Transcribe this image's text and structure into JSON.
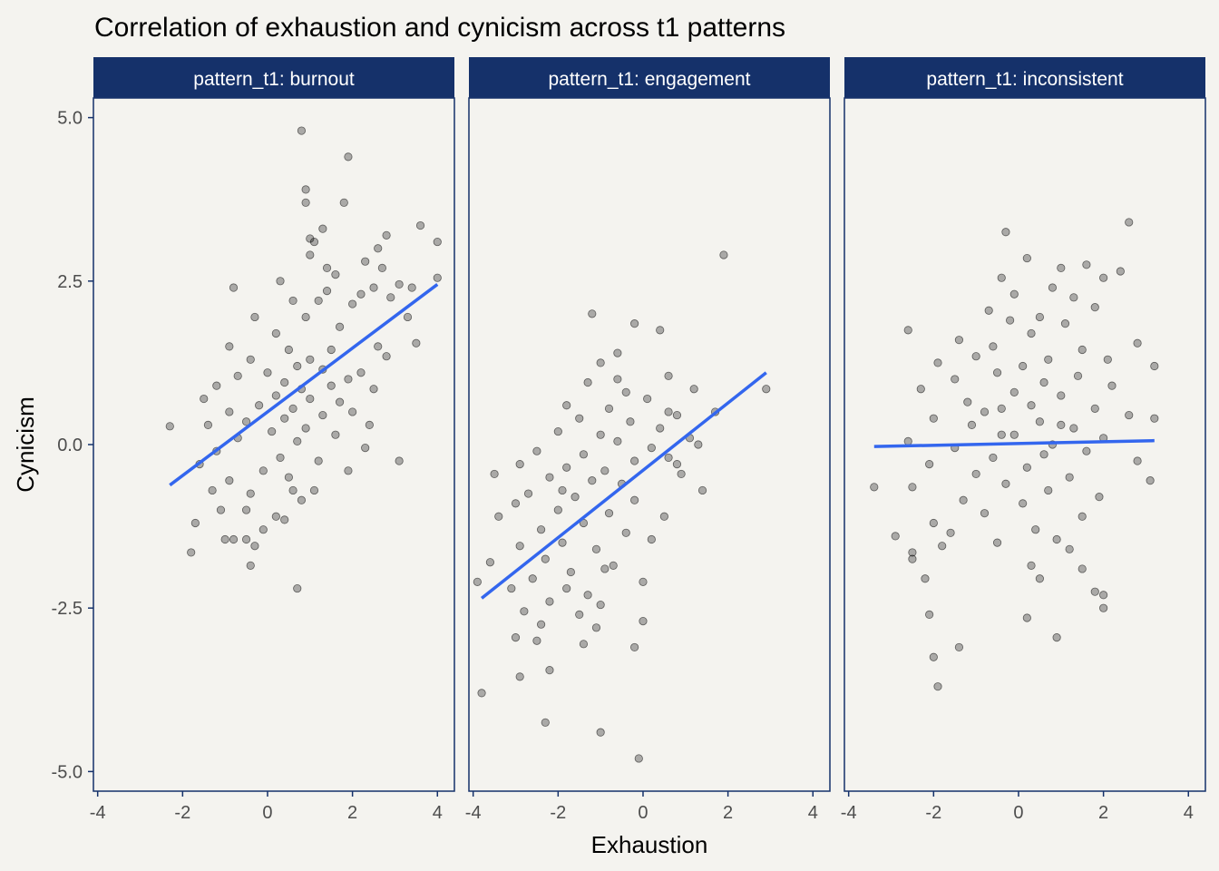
{
  "chart_data": {
    "type": "scatter",
    "title": "Correlation of exhaustion and cynicism across t1 patterns",
    "xlabel": "Exhaustion",
    "ylabel": "Cynicism",
    "xlim": [
      -4.1,
      4.4
    ],
    "ylim": [
      -5.3,
      5.3
    ],
    "x_ticks": [
      -4,
      -2,
      0,
      2,
      4
    ],
    "x_tick_labels": [
      "-4",
      "-2",
      "0",
      "2",
      "4"
    ],
    "y_ticks": [
      5,
      2.5,
      0,
      -2.5,
      -5
    ],
    "y_tick_labels": [
      "5.0",
      "2.5",
      "0.0",
      "-2.5",
      "-5.0"
    ],
    "grid": false,
    "colors": {
      "background": "#f4f3ef",
      "strip": "#15316a",
      "strip_text": "#ffffff",
      "panel_border": "#15316a",
      "points": "#000000",
      "trend": "#3366ee",
      "text": "#4d4d4d",
      "title": "#000000"
    },
    "panels": [
      {
        "strip": "pattern_t1: burnout",
        "trend": {
          "x": [
            -2.3,
            4.0
          ],
          "y": [
            -0.62,
            2.45
          ]
        },
        "points": [
          [
            0.8,
            4.8
          ],
          [
            1.9,
            4.4
          ],
          [
            0.9,
            3.9
          ],
          [
            0.9,
            3.7
          ],
          [
            1.8,
            3.7
          ],
          [
            3.6,
            3.35
          ],
          [
            1.3,
            3.3
          ],
          [
            4.0,
            3.1
          ],
          [
            2.8,
            3.2
          ],
          [
            2.6,
            3.0
          ],
          [
            1.0,
            3.15
          ],
          [
            1.1,
            3.1
          ],
          [
            2.3,
            2.8
          ],
          [
            1.0,
            2.9
          ],
          [
            2.7,
            2.7
          ],
          [
            3.4,
            2.4
          ],
          [
            4.0,
            2.55
          ],
          [
            3.1,
            2.45
          ],
          [
            -0.8,
            2.4
          ],
          [
            0.3,
            2.5
          ],
          [
            2.5,
            2.4
          ],
          [
            2.2,
            2.3
          ],
          [
            1.4,
            2.7
          ],
          [
            1.6,
            2.6
          ],
          [
            0.6,
            2.2
          ],
          [
            1.2,
            2.2
          ],
          [
            2.9,
            2.25
          ],
          [
            3.3,
            1.95
          ],
          [
            2.0,
            2.15
          ],
          [
            0.9,
            1.95
          ],
          [
            -0.3,
            1.95
          ],
          [
            1.7,
            1.8
          ],
          [
            0.2,
            1.7
          ],
          [
            -0.9,
            1.5
          ],
          [
            3.5,
            1.55
          ],
          [
            1.5,
            1.45
          ],
          [
            0.5,
            1.45
          ],
          [
            2.8,
            1.35
          ],
          [
            1.0,
            1.3
          ],
          [
            -0.4,
            1.3
          ],
          [
            0.7,
            1.2
          ],
          [
            1.3,
            1.15
          ],
          [
            2.2,
            1.1
          ],
          [
            0.0,
            1.1
          ],
          [
            1.9,
            1.0
          ],
          [
            -0.7,
            1.05
          ],
          [
            0.4,
            0.95
          ],
          [
            1.5,
            0.9
          ],
          [
            2.5,
            0.85
          ],
          [
            -1.2,
            0.9
          ],
          [
            0.8,
            0.85
          ],
          [
            0.2,
            0.75
          ],
          [
            1.0,
            0.7
          ],
          [
            -1.5,
            0.7
          ],
          [
            1.7,
            0.65
          ],
          [
            -0.2,
            0.6
          ],
          [
            0.6,
            0.55
          ],
          [
            2.0,
            0.5
          ],
          [
            -0.9,
            0.5
          ],
          [
            1.3,
            0.45
          ],
          [
            0.4,
            0.4
          ],
          [
            -0.5,
            0.35
          ],
          [
            2.4,
            0.3
          ],
          [
            0.9,
            0.25
          ],
          [
            -1.4,
            0.3
          ],
          [
            -2.3,
            0.28
          ],
          [
            0.1,
            0.2
          ],
          [
            1.6,
            0.15
          ],
          [
            -0.7,
            0.1
          ],
          [
            0.7,
            0.05
          ],
          [
            -1.2,
            -0.1
          ],
          [
            2.3,
            -0.05
          ],
          [
            0.3,
            -0.2
          ],
          [
            1.2,
            -0.25
          ],
          [
            3.1,
            -0.25
          ],
          [
            -1.6,
            -0.3
          ],
          [
            -0.1,
            -0.4
          ],
          [
            0.5,
            -0.5
          ],
          [
            -0.9,
            -0.55
          ],
          [
            1.9,
            -0.4
          ],
          [
            0.6,
            -0.7
          ],
          [
            -0.4,
            -0.75
          ],
          [
            0.8,
            -0.85
          ],
          [
            -1.3,
            -0.7
          ],
          [
            -1.1,
            -1.0
          ],
          [
            -0.5,
            -1.0
          ],
          [
            0.2,
            -1.1
          ],
          [
            -1.7,
            -1.2
          ],
          [
            -0.1,
            -1.3
          ],
          [
            0.4,
            -1.15
          ],
          [
            -0.8,
            -1.45
          ],
          [
            -1.0,
            -1.45
          ],
          [
            -0.5,
            -1.45
          ],
          [
            -0.3,
            -1.55
          ],
          [
            -1.8,
            -1.65
          ],
          [
            -0.4,
            -1.85
          ],
          [
            0.7,
            -2.2
          ],
          [
            1.1,
            -0.7
          ],
          [
            2.6,
            1.5
          ],
          [
            1.4,
            2.35
          ]
        ]
      },
      {
        "strip": "pattern_t1: engagement",
        "trend": {
          "x": [
            -3.8,
            2.9
          ],
          "y": [
            -2.35,
            1.1
          ]
        },
        "points": [
          [
            1.9,
            2.9
          ],
          [
            -1.2,
            2.0
          ],
          [
            -0.2,
            1.85
          ],
          [
            0.4,
            1.75
          ],
          [
            -0.6,
            1.4
          ],
          [
            -1.0,
            1.25
          ],
          [
            0.6,
            1.05
          ],
          [
            -1.3,
            0.95
          ],
          [
            2.9,
            0.85
          ],
          [
            1.2,
            0.85
          ],
          [
            -0.4,
            0.8
          ],
          [
            0.1,
            0.7
          ],
          [
            -1.8,
            0.6
          ],
          [
            -0.8,
            0.55
          ],
          [
            1.7,
            0.5
          ],
          [
            0.8,
            0.45
          ],
          [
            -1.5,
            0.4
          ],
          [
            -0.3,
            0.35
          ],
          [
            0.4,
            0.25
          ],
          [
            -2.0,
            0.2
          ],
          [
            -1.0,
            0.15
          ],
          [
            1.1,
            0.1
          ],
          [
            -0.6,
            0.05
          ],
          [
            0.2,
            -0.05
          ],
          [
            -2.5,
            -0.1
          ],
          [
            -1.4,
            -0.15
          ],
          [
            0.6,
            -0.2
          ],
          [
            -0.2,
            -0.25
          ],
          [
            -2.9,
            -0.3
          ],
          [
            -1.8,
            -0.35
          ],
          [
            -0.9,
            -0.4
          ],
          [
            0.9,
            -0.45
          ],
          [
            -3.5,
            -0.45
          ],
          [
            -2.2,
            -0.5
          ],
          [
            -1.2,
            -0.55
          ],
          [
            -0.5,
            -0.6
          ],
          [
            1.4,
            -0.7
          ],
          [
            -2.7,
            -0.75
          ],
          [
            -1.6,
            -0.8
          ],
          [
            -0.2,
            -0.85
          ],
          [
            -3.0,
            -0.9
          ],
          [
            -2.0,
            -1.0
          ],
          [
            -0.8,
            -1.05
          ],
          [
            0.5,
            -1.1
          ],
          [
            -3.4,
            -1.1
          ],
          [
            -1.4,
            -1.2
          ],
          [
            -2.4,
            -1.3
          ],
          [
            -0.4,
            -1.35
          ],
          [
            0.2,
            -1.45
          ],
          [
            -1.9,
            -1.5
          ],
          [
            -2.9,
            -1.55
          ],
          [
            -1.1,
            -1.6
          ],
          [
            -2.3,
            -1.75
          ],
          [
            -3.6,
            -1.8
          ],
          [
            -0.7,
            -1.85
          ],
          [
            -1.7,
            -1.95
          ],
          [
            -2.6,
            -2.05
          ],
          [
            0.0,
            -2.1
          ],
          [
            -3.1,
            -2.2
          ],
          [
            -1.3,
            -2.3
          ],
          [
            -2.2,
            -2.4
          ],
          [
            -1.0,
            -2.45
          ],
          [
            -2.8,
            -2.55
          ],
          [
            -1.5,
            -2.6
          ],
          [
            0.0,
            -2.7
          ],
          [
            -2.4,
            -2.75
          ],
          [
            -1.1,
            -2.8
          ],
          [
            -3.0,
            -2.95
          ],
          [
            -2.5,
            -3.0
          ],
          [
            -1.4,
            -3.05
          ],
          [
            -0.2,
            -3.1
          ],
          [
            -2.2,
            -3.45
          ],
          [
            -2.9,
            -3.55
          ],
          [
            -3.8,
            -3.8
          ],
          [
            -2.3,
            -4.25
          ],
          [
            -1.0,
            -4.4
          ],
          [
            -0.1,
            -4.8
          ],
          [
            -3.9,
            -2.1
          ],
          [
            1.3,
            0.0
          ],
          [
            0.8,
            -0.3
          ],
          [
            -0.6,
            1.0
          ],
          [
            -1.9,
            -0.7
          ],
          [
            -0.9,
            -1.9
          ],
          [
            -1.8,
            -2.2
          ],
          [
            0.6,
            0.5
          ]
        ]
      },
      {
        "strip": "pattern_t1: inconsistent",
        "trend": {
          "x": [
            -3.4,
            3.2
          ],
          "y": [
            -0.03,
            0.06
          ]
        },
        "points": [
          [
            2.6,
            3.4
          ],
          [
            -0.3,
            3.25
          ],
          [
            0.2,
            2.85
          ],
          [
            1.6,
            2.75
          ],
          [
            1.0,
            2.7
          ],
          [
            2.4,
            2.65
          ],
          [
            -0.4,
            2.55
          ],
          [
            2.0,
            2.55
          ],
          [
            0.8,
            2.4
          ],
          [
            -0.1,
            2.3
          ],
          [
            1.3,
            2.25
          ],
          [
            1.8,
            2.1
          ],
          [
            -0.7,
            2.05
          ],
          [
            0.5,
            1.95
          ],
          [
            -0.2,
            1.9
          ],
          [
            1.1,
            1.85
          ],
          [
            -2.6,
            1.75
          ],
          [
            0.3,
            1.7
          ],
          [
            -1.4,
            1.6
          ],
          [
            2.8,
            1.55
          ],
          [
            -0.6,
            1.5
          ],
          [
            1.5,
            1.45
          ],
          [
            -1.0,
            1.35
          ],
          [
            0.7,
            1.3
          ],
          [
            2.1,
            1.3
          ],
          [
            -1.9,
            1.25
          ],
          [
            0.1,
            1.2
          ],
          [
            3.2,
            1.2
          ],
          [
            -0.5,
            1.1
          ],
          [
            1.4,
            1.05
          ],
          [
            -1.5,
            1.0
          ],
          [
            0.6,
            0.95
          ],
          [
            2.2,
            0.9
          ],
          [
            -2.3,
            0.85
          ],
          [
            -0.1,
            0.8
          ],
          [
            1.0,
            0.75
          ],
          [
            -1.2,
            0.65
          ],
          [
            0.3,
            0.6
          ],
          [
            1.8,
            0.55
          ],
          [
            -0.8,
            0.5
          ],
          [
            2.6,
            0.45
          ],
          [
            -2.0,
            0.4
          ],
          [
            0.5,
            0.35
          ],
          [
            3.2,
            0.4
          ],
          [
            -1.1,
            0.3
          ],
          [
            1.3,
            0.25
          ],
          [
            -0.4,
            0.15
          ],
          [
            2.0,
            0.1
          ],
          [
            -2.6,
            0.05
          ],
          [
            0.8,
            0.0
          ],
          [
            -1.5,
            -0.05
          ],
          [
            1.6,
            -0.1
          ],
          [
            -0.6,
            -0.2
          ],
          [
            2.8,
            -0.25
          ],
          [
            -2.1,
            -0.3
          ],
          [
            0.2,
            -0.35
          ],
          [
            -1.0,
            -0.45
          ],
          [
            1.2,
            -0.5
          ],
          [
            3.1,
            -0.55
          ],
          [
            -0.3,
            -0.6
          ],
          [
            -2.5,
            -0.65
          ],
          [
            0.7,
            -0.7
          ],
          [
            -3.4,
            -0.65
          ],
          [
            1.9,
            -0.8
          ],
          [
            -1.3,
            -0.85
          ],
          [
            0.1,
            -0.9
          ],
          [
            -0.8,
            -1.05
          ],
          [
            1.5,
            -1.1
          ],
          [
            -2.0,
            -1.2
          ],
          [
            0.4,
            -1.3
          ],
          [
            -1.6,
            -1.35
          ],
          [
            -2.9,
            -1.4
          ],
          [
            0.9,
            -1.45
          ],
          [
            -0.5,
            -1.5
          ],
          [
            1.2,
            -1.6
          ],
          [
            -2.5,
            -1.65
          ],
          [
            -1.8,
            -1.55
          ],
          [
            0.3,
            -1.85
          ],
          [
            1.5,
            -1.9
          ],
          [
            -2.5,
            -1.75
          ],
          [
            0.5,
            -2.05
          ],
          [
            -2.2,
            -2.05
          ],
          [
            1.8,
            -2.25
          ],
          [
            2.0,
            -2.3
          ],
          [
            2.0,
            -2.5
          ],
          [
            -2.1,
            -2.6
          ],
          [
            0.2,
            -2.65
          ],
          [
            0.9,
            -2.95
          ],
          [
            -1.4,
            -3.1
          ],
          [
            -2.0,
            -3.25
          ],
          [
            -1.9,
            -3.7
          ],
          [
            -0.4,
            0.55
          ],
          [
            0.6,
            -0.15
          ],
          [
            -0.1,
            0.15
          ],
          [
            1.0,
            0.3
          ]
        ]
      }
    ]
  }
}
